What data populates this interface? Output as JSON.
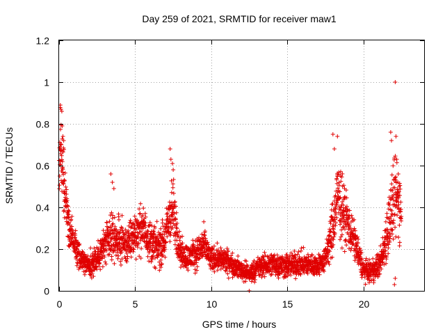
{
  "chart_data": {
    "type": "scatter",
    "title": "Day 259 of 2021, SRMTID for receiver maw1",
    "xlabel": "GPS time / hours",
    "ylabel": "SRMTID / TECUs",
    "xlim": [
      0,
      24
    ],
    "ylim": [
      0,
      1.2
    ],
    "xticks": [
      0,
      5,
      10,
      15,
      20
    ],
    "xtick_labels": [
      "0",
      "5",
      "10",
      "15",
      "20"
    ],
    "yticks": [
      0,
      0.2,
      0.4,
      0.6,
      0.8,
      1.0,
      1.2
    ],
    "ytick_labels": [
      "0",
      "0.2",
      "0.4",
      "0.6",
      "0.8",
      "1",
      "1.2"
    ],
    "grid": true,
    "marker": "+",
    "color": "#e00000",
    "series": [
      {
        "name": "SRMTID",
        "profile": {
          "x": [
            0.0,
            0.1,
            0.3,
            0.6,
            1.0,
            1.5,
            2.0,
            2.5,
            3.0,
            3.5,
            4.0,
            4.5,
            5.0,
            5.5,
            6.0,
            6.5,
            7.0,
            7.2,
            7.5,
            8.0,
            8.5,
            9.0,
            9.5,
            10.0,
            10.5,
            11.0,
            11.5,
            12.0,
            12.5,
            13.0,
            14.0,
            15.0,
            16.0,
            17.0,
            17.5,
            18.0,
            18.3,
            18.6,
            19.0,
            19.5,
            20.0,
            20.5,
            21.0,
            21.3,
            21.6,
            22.0,
            22.2,
            22.5
          ],
          "y": [
            0.55,
            0.72,
            0.52,
            0.32,
            0.22,
            0.15,
            0.12,
            0.16,
            0.22,
            0.25,
            0.24,
            0.22,
            0.28,
            0.3,
            0.24,
            0.2,
            0.25,
            0.35,
            0.38,
            0.18,
            0.16,
            0.18,
            0.22,
            0.15,
            0.16,
            0.14,
            0.12,
            0.1,
            0.08,
            0.11,
            0.13,
            0.12,
            0.13,
            0.12,
            0.15,
            0.3,
            0.45,
            0.4,
            0.32,
            0.22,
            0.1,
            0.09,
            0.12,
            0.18,
            0.3,
            0.42,
            0.45,
            0.4
          ],
          "spread": [
            0.15,
            0.14,
            0.12,
            0.08,
            0.06,
            0.05,
            0.05,
            0.06,
            0.08,
            0.09,
            0.08,
            0.08,
            0.09,
            0.09,
            0.08,
            0.08,
            0.09,
            0.12,
            0.13,
            0.06,
            0.05,
            0.06,
            0.07,
            0.05,
            0.05,
            0.05,
            0.04,
            0.04,
            0.04,
            0.04,
            0.05,
            0.05,
            0.05,
            0.04,
            0.05,
            0.12,
            0.14,
            0.13,
            0.1,
            0.07,
            0.04,
            0.04,
            0.05,
            0.07,
            0.12,
            0.16,
            0.17,
            0.12
          ]
        },
        "outliers": [
          [
            0.08,
            0.89
          ],
          [
            0.12,
            0.87
          ],
          [
            0.18,
            0.86
          ],
          [
            0.2,
            0.79
          ],
          [
            0.25,
            0.74
          ],
          [
            0.3,
            0.72
          ],
          [
            3.4,
            0.56
          ],
          [
            3.5,
            0.52
          ],
          [
            3.6,
            0.49
          ],
          [
            7.3,
            0.68
          ],
          [
            7.35,
            0.63
          ],
          [
            7.45,
            0.61
          ],
          [
            7.5,
            0.58
          ],
          [
            12.5,
            0.0
          ],
          [
            18.0,
            0.75
          ],
          [
            18.1,
            0.68
          ],
          [
            18.3,
            0.74
          ],
          [
            18.5,
            0.55
          ],
          [
            21.8,
            0.76
          ],
          [
            21.85,
            0.72
          ],
          [
            22.1,
            1.0
          ],
          [
            22.15,
            0.74
          ],
          [
            22.2,
            0.63
          ],
          [
            22.3,
            0.56
          ],
          [
            22.05,
            0.03
          ],
          [
            22.1,
            0.06
          ]
        ],
        "points_per_hour": 130
      }
    ]
  }
}
